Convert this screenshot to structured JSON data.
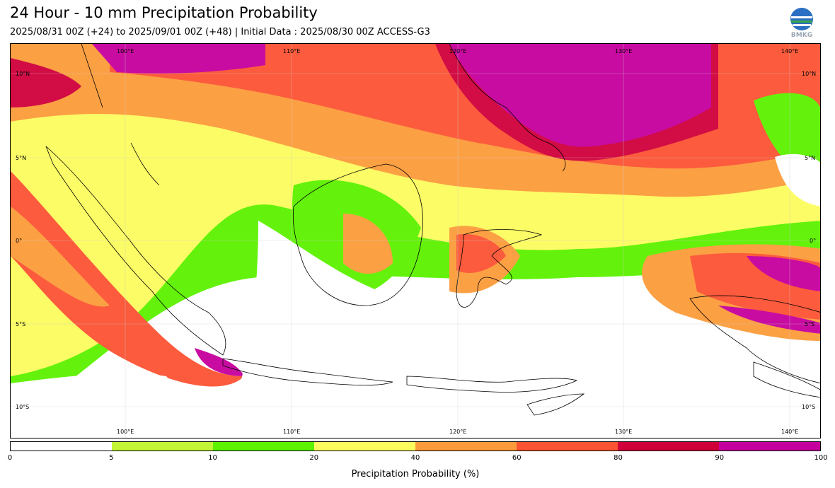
{
  "header": {
    "title": "24 Hour - 10 mm Precipitation Probability",
    "subtitle": "2025/08/31 00Z (+24) to 2025/09/01 00Z (+48) | Initial Data : 2025/08/30 00Z ACCESS-G3",
    "logo_text": "BMKG"
  },
  "map": {
    "lon_labels_top": [
      "100°E",
      "110°E",
      "120°E",
      "130°E",
      "140°E"
    ],
    "lon_labels_bottom": [
      "100°E",
      "110°E",
      "120°E",
      "130°E",
      "140°E"
    ],
    "lat_labels_left": [
      "10°N",
      "5°N",
      "0°",
      "5°S",
      "10°S"
    ],
    "lat_labels_right": [
      "10°N",
      "5°N",
      "0°",
      "5°S",
      "10°S"
    ]
  },
  "colorbar": {
    "label": "Precipitation Probability (%)",
    "ticks": [
      "0",
      "5",
      "10",
      "20",
      "40",
      "60",
      "80",
      "90",
      "100"
    ],
    "colors": [
      "#ffffff",
      "#c2f535",
      "#5cf200",
      "#fcfc5e",
      "#fc9b3b",
      "#fc5333",
      "#d0003a",
      "#c6009c"
    ]
  }
}
